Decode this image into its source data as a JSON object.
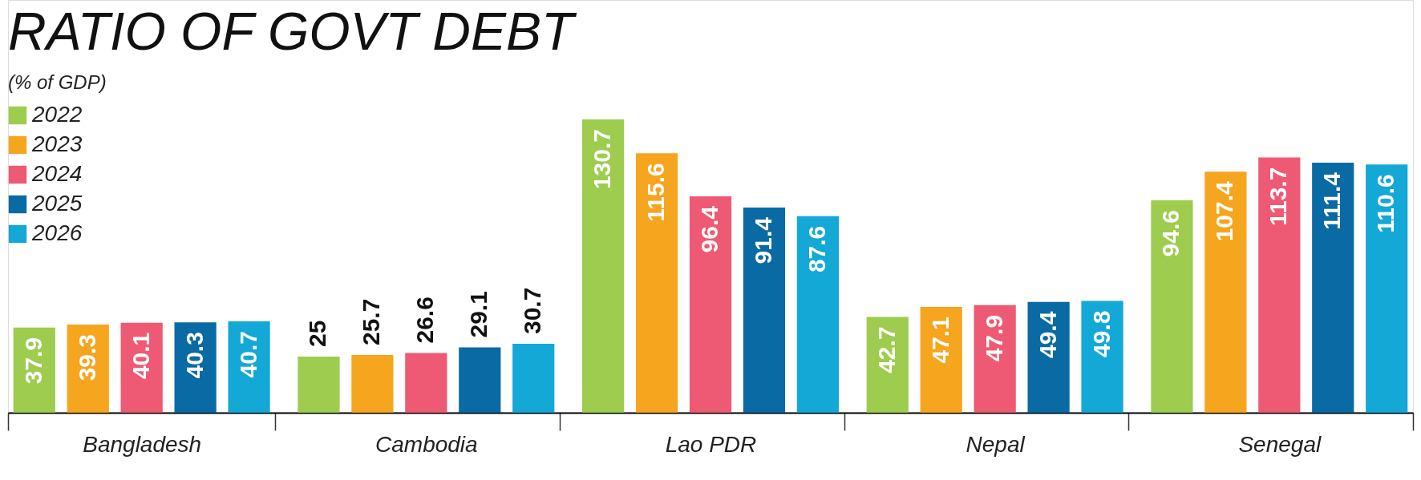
{
  "chart_data": {
    "type": "bar",
    "title": "RATIO OF GOVT DEBT",
    "subtitle": "(% of GDP)",
    "categories": [
      "Bangladesh",
      "Cambodia",
      "Lao PDR",
      "Nepal",
      "Senegal"
    ],
    "series": [
      {
        "name": "2022",
        "color": "#9dcc4f",
        "values": [
          37.9,
          25,
          130.7,
          42.7,
          94.6
        ]
      },
      {
        "name": "2023",
        "color": "#f6a51f",
        "values": [
          39.3,
          25.7,
          115.6,
          47.1,
          107.4
        ]
      },
      {
        "name": "2024",
        "color": "#ee5a73",
        "values": [
          40.1,
          26.6,
          96.4,
          47.9,
          113.7
        ]
      },
      {
        "name": "2025",
        "color": "#0a6aa4",
        "values": [
          40.3,
          29.1,
          91.4,
          49.4,
          111.4
        ]
      },
      {
        "name": "2026",
        "color": "#14a8d6",
        "values": [
          40.7,
          30.7,
          87.6,
          49.8,
          110.6
        ]
      }
    ],
    "data_labels": true,
    "legend": "top left"
  }
}
